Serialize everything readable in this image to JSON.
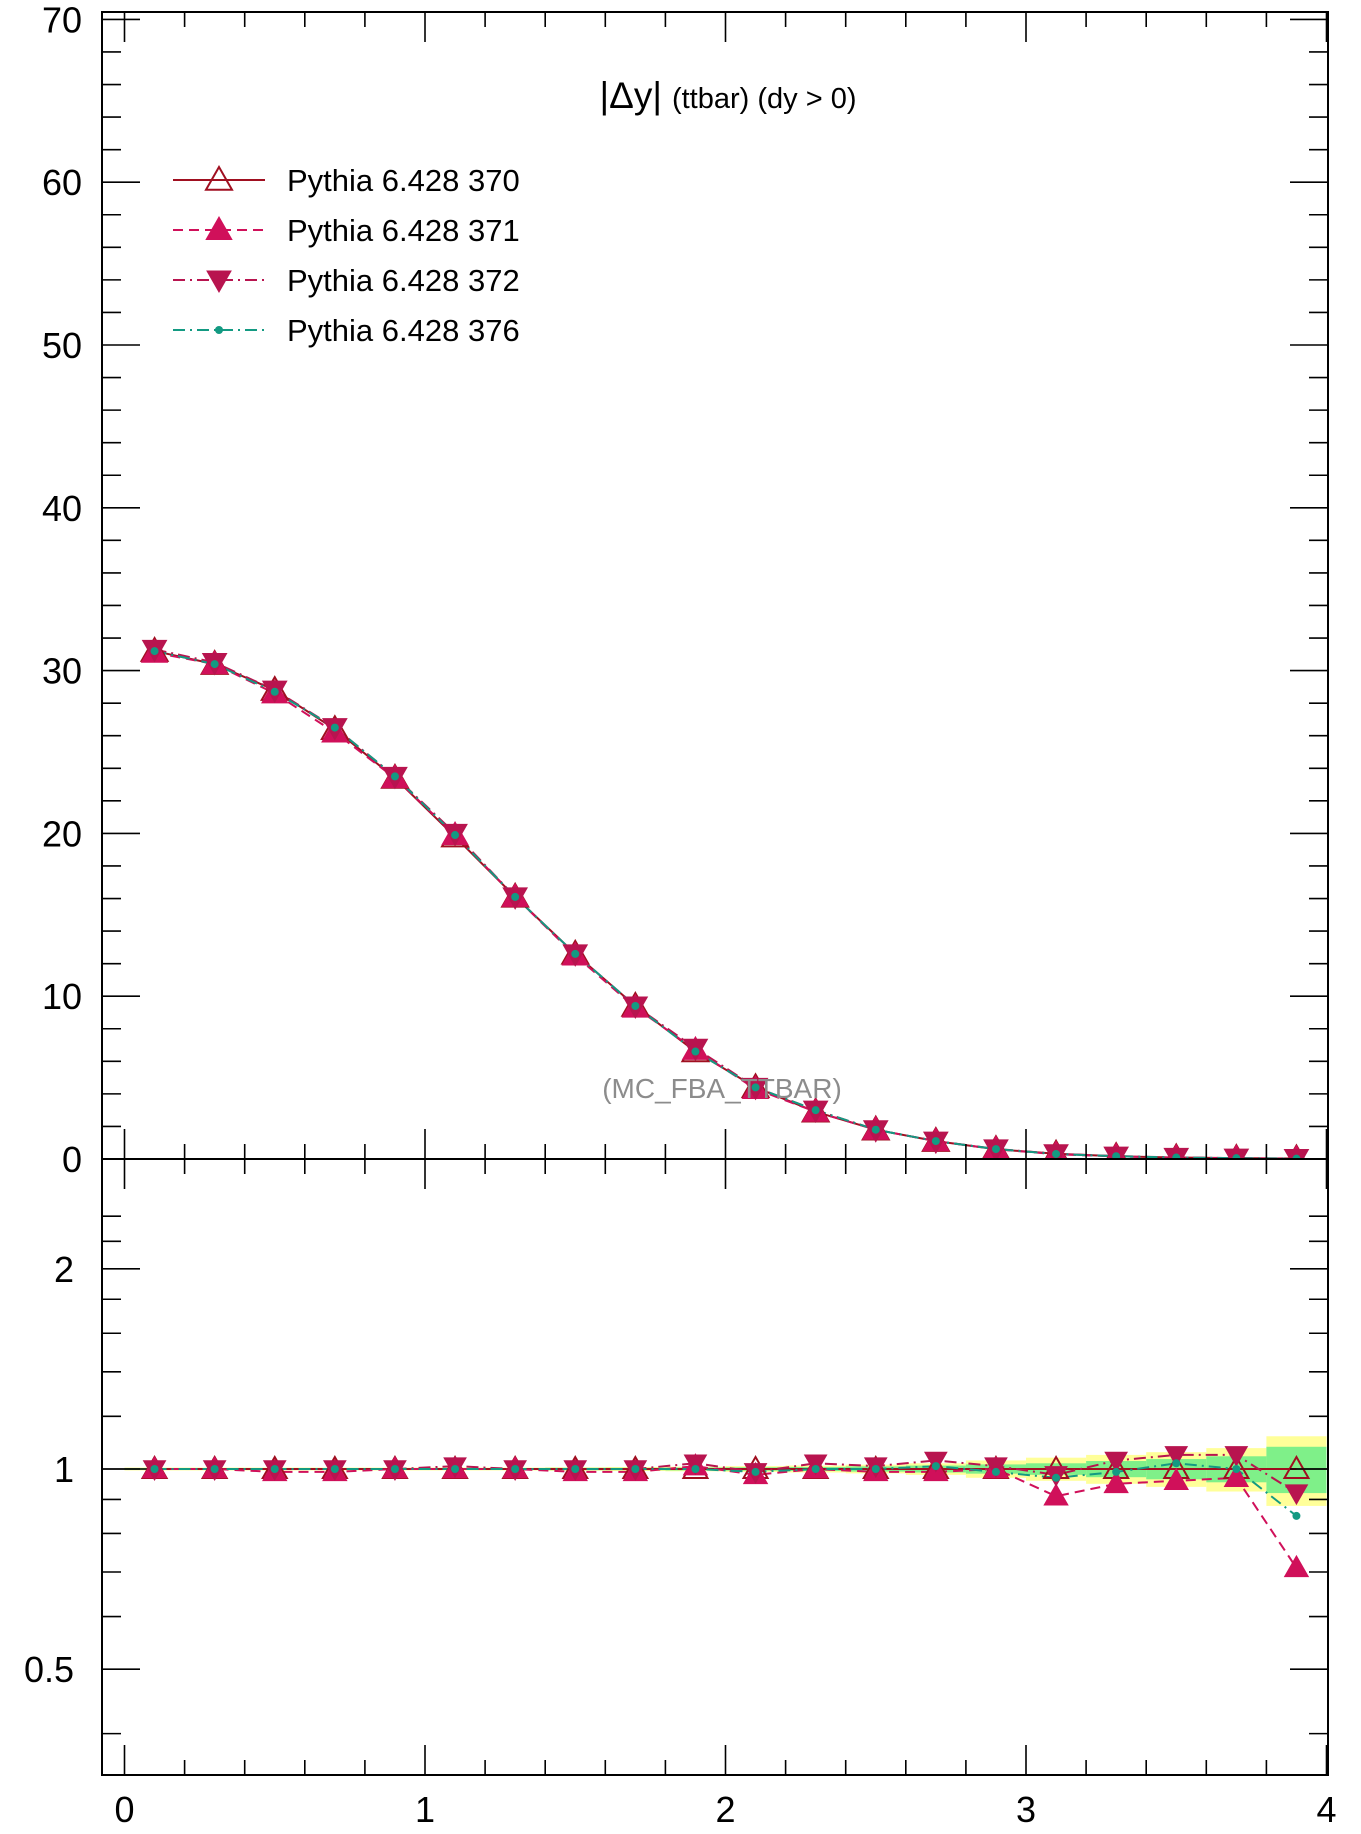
{
  "chart_data": [
    {
      "type": "line",
      "title": "|Δy| (ttbar) (dy > 0)",
      "title_main": "|Δy|",
      "title_sub": "(ttbar) (dy > 0)",
      "watermark": "(MC_FBA_TTBAR)",
      "xlim": [
        0,
        4
      ],
      "ylim": [
        0,
        70
      ],
      "y_ticks": [
        "0",
        "10",
        "20",
        "30",
        "40",
        "50",
        "60",
        "70"
      ],
      "x_ticks": [
        "0",
        "1",
        "2",
        "3",
        "4"
      ],
      "legend_position": "top-left",
      "x": [
        0.1,
        0.3,
        0.5,
        0.7,
        0.9,
        1.1,
        1.3,
        1.5,
        1.7,
        1.9,
        2.1,
        2.3,
        2.5,
        2.7,
        2.9,
        3.1,
        3.3,
        3.5,
        3.7,
        3.9
      ],
      "series": [
        {
          "name": "Pythia 6.428 370",
          "color": "#a00f20",
          "line": "solid",
          "marker": "open-triangle-up",
          "values": [
            31.2,
            30.4,
            28.8,
            26.4,
            23.4,
            19.8,
            16.1,
            12.6,
            9.4,
            6.6,
            4.4,
            2.9,
            1.8,
            1.1,
            0.6,
            0.32,
            0.17,
            0.09,
            0.05,
            0.03
          ]
        },
        {
          "name": "Pythia 6.428 371",
          "color": "#d0105a",
          "line": "dashed",
          "marker": "filled-triangle-up",
          "values": [
            31.1,
            30.4,
            28.6,
            26.2,
            23.4,
            19.9,
            16.1,
            12.5,
            9.3,
            6.7,
            4.3,
            2.9,
            1.8,
            1.1,
            0.6,
            0.29,
            0.16,
            0.08,
            0.05,
            0.02
          ]
        },
        {
          "name": "Pythia 6.428 372",
          "color": "#b8144f",
          "line": "dashdot",
          "marker": "filled-triangle-down",
          "values": [
            31.3,
            30.5,
            28.8,
            26.5,
            23.5,
            20.0,
            16.1,
            12.6,
            9.4,
            6.8,
            4.4,
            3.0,
            1.8,
            1.1,
            0.62,
            0.32,
            0.18,
            0.1,
            0.05,
            0.03
          ]
        },
        {
          "name": "Pythia 6.428 376",
          "color": "#139a82",
          "line": "dashdot",
          "marker": "dot",
          "values": [
            31.2,
            30.4,
            28.7,
            26.5,
            23.5,
            19.9,
            16.1,
            12.6,
            9.4,
            6.6,
            4.4,
            3.0,
            1.8,
            1.1,
            0.61,
            0.31,
            0.17,
            0.09,
            0.05,
            0.02
          ]
        }
      ]
    },
    {
      "type": "line",
      "title": "",
      "ylim": [
        0.4,
        2.4
      ],
      "log_scale_y": true,
      "y_ticks": [
        "0.5",
        "1",
        "2"
      ],
      "x_ticks": [
        "0",
        "1",
        "2",
        "3",
        "4"
      ],
      "x": [
        0.1,
        0.3,
        0.5,
        0.7,
        0.9,
        1.1,
        1.3,
        1.5,
        1.7,
        1.9,
        2.1,
        2.3,
        2.5,
        2.7,
        2.9,
        3.1,
        3.3,
        3.5,
        3.7,
        3.9
      ],
      "band_edges": [
        0,
        0.2,
        0.4,
        0.6,
        0.8,
        1.0,
        1.2,
        1.4,
        1.6,
        1.8,
        2.0,
        2.2,
        2.4,
        2.6,
        2.8,
        3.0,
        3.2,
        3.4,
        3.6,
        3.8,
        4.0
      ],
      "band_yellow": [
        0.005,
        0.005,
        0.005,
        0.005,
        0.005,
        0.005,
        0.005,
        0.006,
        0.007,
        0.008,
        0.01,
        0.012,
        0.015,
        0.02,
        0.03,
        0.04,
        0.05,
        0.06,
        0.075,
        0.12
      ],
      "band_green": [
        0.003,
        0.003,
        0.003,
        0.003,
        0.003,
        0.003,
        0.003,
        0.004,
        0.004,
        0.005,
        0.006,
        0.007,
        0.009,
        0.012,
        0.016,
        0.02,
        0.028,
        0.035,
        0.045,
        0.08
      ],
      "series": [
        {
          "name": "Pythia 6.428 370",
          "color": "#a00f20",
          "values": [
            1,
            1,
            1,
            1,
            1,
            1,
            1,
            1,
            1,
            1,
            1,
            1,
            1,
            1,
            1,
            1,
            1,
            1,
            1,
            1
          ]
        },
        {
          "name": "Pythia 6.428 371",
          "color": "#d0105a",
          "values": [
            1.0,
            1.0,
            0.99,
            0.99,
            1.0,
            1.0,
            1.0,
            0.99,
            0.99,
            1.01,
            0.98,
            1.0,
            0.99,
            0.99,
            1.0,
            0.91,
            0.95,
            0.96,
            0.97,
            0.71
          ]
        },
        {
          "name": "Pythia 6.428 372",
          "color": "#b8144f",
          "values": [
            1.0,
            1.0,
            1.0,
            1.0,
            1.0,
            1.01,
            1.0,
            1.0,
            1.0,
            1.02,
            0.99,
            1.02,
            1.01,
            1.03,
            1.01,
            0.98,
            1.03,
            1.05,
            1.05,
            0.92
          ]
        },
        {
          "name": "Pythia 6.428 376",
          "color": "#139a82",
          "values": [
            1.0,
            1.0,
            1.0,
            1.0,
            1.0,
            1.0,
            1.0,
            1.0,
            1.0,
            1.0,
            0.99,
            1.0,
            1.0,
            1.01,
            0.99,
            0.97,
            0.99,
            1.02,
            1.0,
            0.85
          ]
        }
      ]
    }
  ]
}
